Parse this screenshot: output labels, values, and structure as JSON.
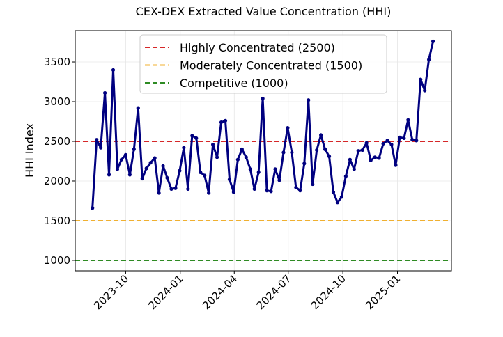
{
  "chart_data": {
    "type": "line",
    "title": "CEX-DEX Extracted Value Concentration (HHI)",
    "xlabel": "",
    "ylabel": "HHI Index",
    "xlim": [
      "2023-07-08",
      "2025-04-02"
    ],
    "ylim": [
      868,
      3895
    ],
    "grid": true,
    "legend_placement": "top-center",
    "x_ticks": [
      "2023-10",
      "2024-01",
      "2024-04",
      "2024-07",
      "2024-10",
      "2025-01"
    ],
    "x_tick_dates": [
      "2023-10-01",
      "2024-01-01",
      "2024-04-01",
      "2024-07-01",
      "2024-10-01",
      "2025-01-01"
    ],
    "y_ticks": [
      1000,
      1500,
      2000,
      2500,
      3000,
      3500
    ],
    "series": [
      {
        "color": "#000080",
        "marker": "circle",
        "x": [
          "2023-08-06",
          "2023-08-13",
          "2023-08-20",
          "2023-08-27",
          "2023-09-03",
          "2023-09-10",
          "2023-09-17",
          "2023-09-24",
          "2023-10-01",
          "2023-10-08",
          "2023-10-15",
          "2023-10-22",
          "2023-10-29",
          "2023-11-05",
          "2023-11-12",
          "2023-11-19",
          "2023-11-26",
          "2023-12-03",
          "2023-12-10",
          "2023-12-17",
          "2023-12-24",
          "2023-12-31",
          "2024-01-07",
          "2024-01-14",
          "2024-01-21",
          "2024-01-28",
          "2024-02-04",
          "2024-02-11",
          "2024-02-18",
          "2024-02-25",
          "2024-03-03",
          "2024-03-10",
          "2024-03-17",
          "2024-03-24",
          "2024-03-31",
          "2024-04-07",
          "2024-04-14",
          "2024-04-21",
          "2024-04-28",
          "2024-05-05",
          "2024-05-12",
          "2024-05-19",
          "2024-05-26",
          "2024-06-02",
          "2024-06-09",
          "2024-06-16",
          "2024-06-23",
          "2024-06-30",
          "2024-07-07",
          "2024-07-14",
          "2024-07-21",
          "2024-07-28",
          "2024-08-04",
          "2024-08-11",
          "2024-08-18",
          "2024-08-25",
          "2024-09-01",
          "2024-09-08",
          "2024-09-15",
          "2024-09-22",
          "2024-09-29",
          "2024-10-06",
          "2024-10-13",
          "2024-10-20",
          "2024-10-27",
          "2024-11-03",
          "2024-11-10",
          "2024-11-17",
          "2024-11-24",
          "2024-12-01",
          "2024-12-08",
          "2024-12-15",
          "2024-12-22",
          "2024-12-29",
          "2025-01-05",
          "2025-01-12",
          "2025-01-19",
          "2025-01-26",
          "2025-02-02",
          "2025-02-09",
          "2025-02-16",
          "2025-02-23",
          "2025-03-02"
        ],
        "y": [
          1660,
          2520,
          2420,
          3110,
          2080,
          3400,
          2150,
          2270,
          2330,
          2080,
          2400,
          2920,
          2030,
          2160,
          2230,
          2290,
          1850,
          2190,
          2040,
          1900,
          1910,
          2130,
          2420,
          1900,
          2570,
          2540,
          2110,
          2070,
          1850,
          2460,
          2300,
          2740,
          2760,
          2020,
          1860,
          2270,
          2400,
          2300,
          2150,
          1900,
          2110,
          3040,
          1880,
          1870,
          2150,
          2010,
          2360,
          2670,
          2360,
          1920,
          1880,
          2220,
          3020,
          1960,
          2390,
          2580,
          2400,
          2310,
          1860,
          1730,
          1800,
          2060,
          2270,
          2150,
          2380,
          2390,
          2480,
          2260,
          2300,
          2290,
          2470,
          2510,
          2460,
          2200,
          2550,
          2540,
          2770,
          2520,
          2510,
          3280,
          3140,
          3530,
          3760
        ]
      }
    ],
    "reference_lines": [
      {
        "name": "Highly Concentrated (2500)",
        "y": 2500,
        "color": "#d62728",
        "style": "dashed"
      },
      {
        "name": "Moderately Concentrated (1500)",
        "y": 1500,
        "color": "#f0b030",
        "style": "dashed"
      },
      {
        "name": "Competitive (1000)",
        "y": 1000,
        "color": "#2e8b23",
        "style": "dashed"
      }
    ]
  }
}
